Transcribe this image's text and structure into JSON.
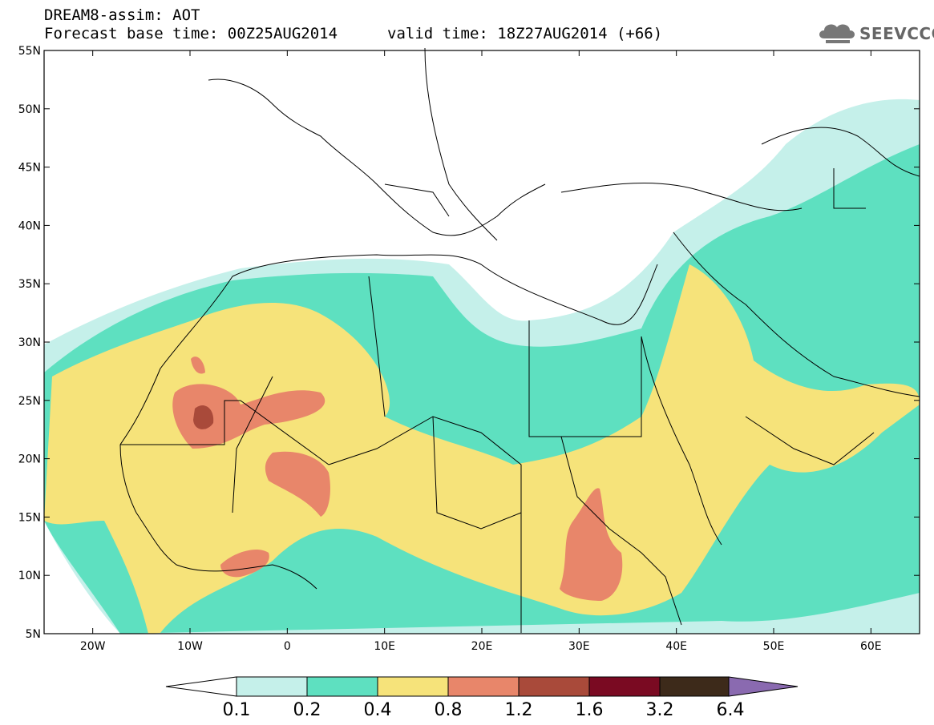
{
  "header": {
    "title_line1": "DREAM8-assim: AOT",
    "title_line2": "Forecast base time: 00Z25AUG2014",
    "valid_time": "valid time: 18Z27AUG2014 (+66)",
    "logo_text": "SEEVCCC"
  },
  "map": {
    "lon_range": [
      -25,
      65
    ],
    "lat_range": [
      5,
      55
    ],
    "lat_labels": [
      "55N",
      "50N",
      "45N",
      "40N",
      "35N",
      "30N",
      "25N",
      "20N",
      "15N",
      "10N",
      "5N"
    ],
    "lon_labels": [
      "20W",
      "10W",
      "0",
      "10E",
      "20E",
      "30E",
      "40E",
      "50E",
      "60E"
    ]
  },
  "colorbar": {
    "labels": [
      "0.1",
      "0.2",
      "0.4",
      "0.8",
      "1.2",
      "1.6",
      "3.2",
      "6.4"
    ],
    "colors": [
      "#ffffff",
      "#c5f0ea",
      "#5ee0c0",
      "#f6e37a",
      "#e8866a",
      "#a94a3a",
      "#7a0a22",
      "#3d2a1a",
      "#8a6ab0"
    ]
  }
}
